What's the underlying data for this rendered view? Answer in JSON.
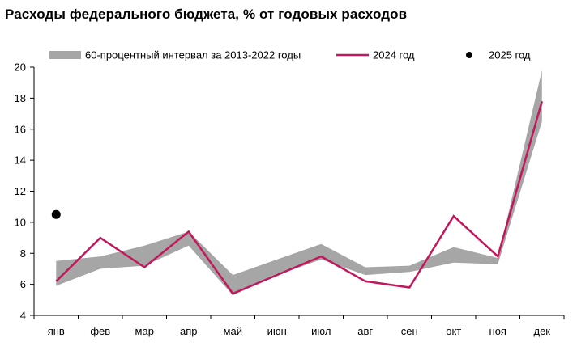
{
  "chart_data": {
    "type": "line",
    "title": "Расходы федерального бюджета, % от годовых расходов",
    "categories": [
      "янв",
      "фев",
      "мар",
      "апр",
      "май",
      "июн",
      "июл",
      "авг",
      "сен",
      "окт",
      "ноя",
      "дек"
    ],
    "ylim": [
      4,
      20
    ],
    "yticks": [
      4,
      6,
      8,
      10,
      12,
      14,
      16,
      18,
      20
    ],
    "grid": false,
    "legend_position": "top",
    "band": {
      "name": "60-процентный интервал за 2013-2022 годы",
      "color": "#a6a6a6",
      "lower": [
        5.9,
        7.0,
        7.2,
        8.5,
        5.3,
        6.6,
        7.6,
        6.6,
        6.8,
        7.4,
        7.3,
        16.5
      ],
      "upper": [
        7.5,
        7.8,
        8.5,
        9.4,
        6.6,
        7.6,
        8.6,
        7.1,
        7.2,
        8.4,
        7.7,
        19.8
      ]
    },
    "series": [
      {
        "name": "2024 год",
        "color": "#c2185b",
        "values": [
          6.2,
          9.0,
          7.1,
          9.4,
          5.4,
          6.6,
          7.8,
          6.2,
          5.8,
          10.4,
          7.8,
          17.8
        ]
      }
    ],
    "points": [
      {
        "name": "2025 год",
        "color": "#000000",
        "category": "янв",
        "value": 10.5
      }
    ]
  }
}
